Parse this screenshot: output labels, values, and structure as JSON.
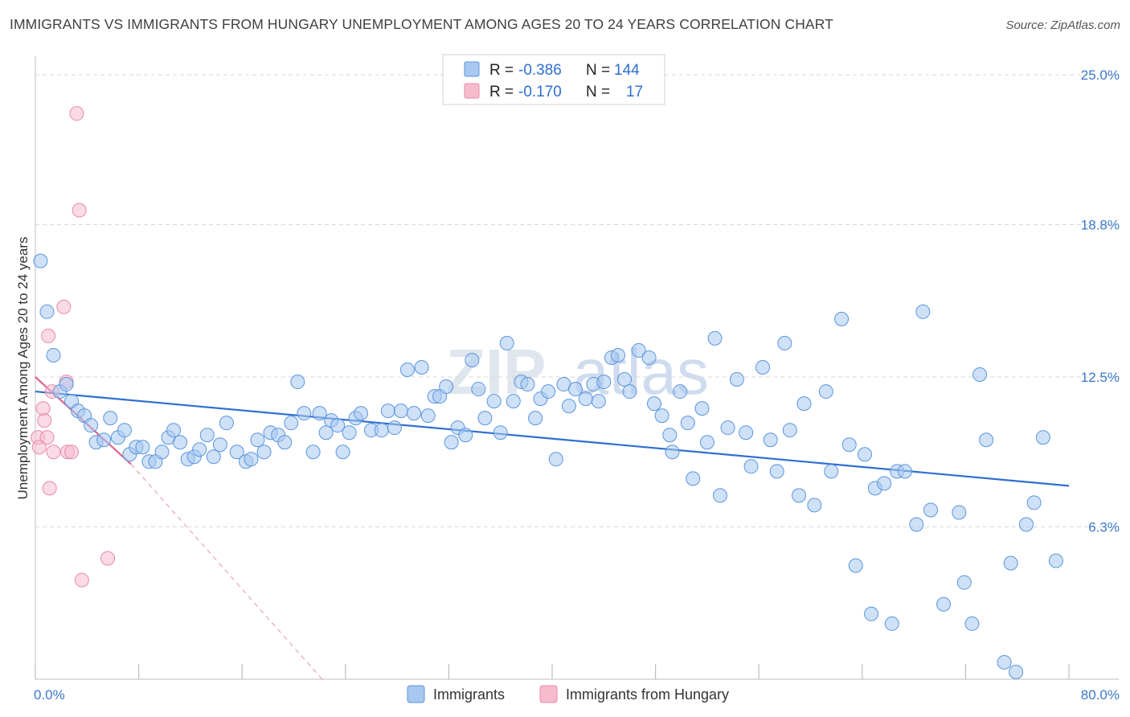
{
  "title": "IMMIGRANTS VS IMMIGRANTS FROM HUNGARY UNEMPLOYMENT AMONG AGES 20 TO 24 YEARS CORRELATION CHART",
  "source": "Source: ZipAtlas.com",
  "watermark": {
    "left": "ZIP",
    "right": "atlas"
  },
  "legend": {
    "row1": {
      "r_label": "R =",
      "r_value": "-0.386",
      "n_label": "N =",
      "n_value": "144"
    },
    "row2": {
      "r_label": "R =",
      "r_value": "-0.170",
      "n_label": "N =",
      "n_value": "17"
    }
  },
  "bottom_legend": {
    "series1": "Immigrants",
    "series2": "Immigrants from Hungary"
  },
  "chart_data": {
    "type": "scatter",
    "title": "IMMIGRANTS VS IMMIGRANTS FROM HUNGARY UNEMPLOYMENT AMONG AGES 20 TO 24 YEARS CORRELATION CHART",
    "xlabel": "",
    "ylabel": "Unemployment Among Ages 20 to 24 years",
    "xlim": [
      0,
      80
    ],
    "ylim": [
      0,
      25.5
    ],
    "x_tick_labels": [
      "0.0%",
      "80.0%"
    ],
    "y_ticks": [
      6.3,
      12.5,
      18.8,
      25.0
    ],
    "y_tick_labels": [
      "6.3%",
      "12.5%",
      "18.8%",
      "25.0%"
    ],
    "grid": true,
    "legend_position": "top-center",
    "colors": {
      "immigrants": "#a8c8f0",
      "immigrants_edge": "#5b95dc",
      "hungary": "#f6bccd",
      "hungary_edge": "#e88aa6",
      "trend1": "#2f6fd0",
      "trend2": "#e0628a"
    },
    "series": [
      {
        "name": "Immigrants",
        "r": -0.386,
        "n": 144,
        "trend": {
          "x": [
            0,
            80
          ],
          "y": [
            11.9,
            8.0
          ]
        },
        "points": [
          [
            0.4,
            17.3
          ],
          [
            0.9,
            15.2
          ],
          [
            1.4,
            13.4
          ],
          [
            1.9,
            11.9
          ],
          [
            2.4,
            12.2
          ],
          [
            2.8,
            11.5
          ],
          [
            3.3,
            11.1
          ],
          [
            3.8,
            10.9
          ],
          [
            4.3,
            10.5
          ],
          [
            4.7,
            9.8
          ],
          [
            5.3,
            9.9
          ],
          [
            5.8,
            10.8
          ],
          [
            6.4,
            10.0
          ],
          [
            6.9,
            10.3
          ],
          [
            7.3,
            9.3
          ],
          [
            7.8,
            9.6
          ],
          [
            8.3,
            9.6
          ],
          [
            8.8,
            9.0
          ],
          [
            9.3,
            9.0
          ],
          [
            9.8,
            9.4
          ],
          [
            10.3,
            10.0
          ],
          [
            10.7,
            10.3
          ],
          [
            11.2,
            9.8
          ],
          [
            11.8,
            9.1
          ],
          [
            12.3,
            9.2
          ],
          [
            12.7,
            9.5
          ],
          [
            13.3,
            10.1
          ],
          [
            13.8,
            9.2
          ],
          [
            14.3,
            9.7
          ],
          [
            14.8,
            10.6
          ],
          [
            15.6,
            9.4
          ],
          [
            16.3,
            9.0
          ],
          [
            16.7,
            9.1
          ],
          [
            17.2,
            9.9
          ],
          [
            17.7,
            9.4
          ],
          [
            18.2,
            10.2
          ],
          [
            18.8,
            10.1
          ],
          [
            19.3,
            9.8
          ],
          [
            19.8,
            10.6
          ],
          [
            20.3,
            12.3
          ],
          [
            20.8,
            11.0
          ],
          [
            21.5,
            9.4
          ],
          [
            22.0,
            11.0
          ],
          [
            22.5,
            10.2
          ],
          [
            22.9,
            10.7
          ],
          [
            23.4,
            10.5
          ],
          [
            23.8,
            9.4
          ],
          [
            24.3,
            10.2
          ],
          [
            24.8,
            10.8
          ],
          [
            25.2,
            11.0
          ],
          [
            26.0,
            10.3
          ],
          [
            26.8,
            10.3
          ],
          [
            27.3,
            11.1
          ],
          [
            27.8,
            10.4
          ],
          [
            28.3,
            11.1
          ],
          [
            28.8,
            12.8
          ],
          [
            29.3,
            11.0
          ],
          [
            29.9,
            12.9
          ],
          [
            30.4,
            10.9
          ],
          [
            30.9,
            11.7
          ],
          [
            31.3,
            11.7
          ],
          [
            31.8,
            12.1
          ],
          [
            32.2,
            9.8
          ],
          [
            32.7,
            10.4
          ],
          [
            33.3,
            10.1
          ],
          [
            33.8,
            13.2
          ],
          [
            34.3,
            12.0
          ],
          [
            34.8,
            10.8
          ],
          [
            35.5,
            11.5
          ],
          [
            36.0,
            10.2
          ],
          [
            36.5,
            13.9
          ],
          [
            37.0,
            11.5
          ],
          [
            37.6,
            12.3
          ],
          [
            38.1,
            12.2
          ],
          [
            38.7,
            10.8
          ],
          [
            39.1,
            11.6
          ],
          [
            39.7,
            11.9
          ],
          [
            40.3,
            9.1
          ],
          [
            40.9,
            12.2
          ],
          [
            41.3,
            11.3
          ],
          [
            41.8,
            12.0
          ],
          [
            42.6,
            11.6
          ],
          [
            43.2,
            12.2
          ],
          [
            43.6,
            11.5
          ],
          [
            44.0,
            12.3
          ],
          [
            44.6,
            13.3
          ],
          [
            45.1,
            13.4
          ],
          [
            45.6,
            12.4
          ],
          [
            46.0,
            11.9
          ],
          [
            46.7,
            13.6
          ],
          [
            47.5,
            13.3
          ],
          [
            47.9,
            11.4
          ],
          [
            48.5,
            10.9
          ],
          [
            49.1,
            10.1
          ],
          [
            49.3,
            9.4
          ],
          [
            49.9,
            11.9
          ],
          [
            50.5,
            10.6
          ],
          [
            50.9,
            8.3
          ],
          [
            51.6,
            11.2
          ],
          [
            52.0,
            9.8
          ],
          [
            52.6,
            14.1
          ],
          [
            53.0,
            7.6
          ],
          [
            53.6,
            10.4
          ],
          [
            54.3,
            12.4
          ],
          [
            55.0,
            10.2
          ],
          [
            55.4,
            8.8
          ],
          [
            56.3,
            12.9
          ],
          [
            56.9,
            9.9
          ],
          [
            57.4,
            8.6
          ],
          [
            58.0,
            13.9
          ],
          [
            58.4,
            10.3
          ],
          [
            59.1,
            7.6
          ],
          [
            59.5,
            11.4
          ],
          [
            60.3,
            7.2
          ],
          [
            61.2,
            11.9
          ],
          [
            61.6,
            8.6
          ],
          [
            62.4,
            14.9
          ],
          [
            63.0,
            9.7
          ],
          [
            63.5,
            4.7
          ],
          [
            64.2,
            9.3
          ],
          [
            64.7,
            2.7
          ],
          [
            65.0,
            7.9
          ],
          [
            65.7,
            8.1
          ],
          [
            66.3,
            2.3
          ],
          [
            66.7,
            8.6
          ],
          [
            67.3,
            8.6
          ],
          [
            68.2,
            6.4
          ],
          [
            68.7,
            15.2
          ],
          [
            69.3,
            7.0
          ],
          [
            70.3,
            3.1
          ],
          [
            71.5,
            6.9
          ],
          [
            71.9,
            4.0
          ],
          [
            72.5,
            2.3
          ],
          [
            73.1,
            12.6
          ],
          [
            73.6,
            9.9
          ],
          [
            75.0,
            0.7
          ],
          [
            75.5,
            4.8
          ],
          [
            75.9,
            0.3
          ],
          [
            76.7,
            6.4
          ],
          [
            77.3,
            7.3
          ],
          [
            78.0,
            10.0
          ],
          [
            79.0,
            4.9
          ]
        ]
      },
      {
        "name": "Immigrants from Hungary",
        "r": -0.17,
        "n": 17,
        "trend": {
          "x": [
            0,
            7.4
          ],
          "y": [
            12.5,
            8.9
          ]
        },
        "trend_dashed": {
          "x": [
            7.4,
            22.2
          ],
          "y": [
            8.9,
            0.0
          ]
        },
        "points": [
          [
            0.2,
            10.0
          ],
          [
            0.3,
            9.6
          ],
          [
            0.6,
            11.2
          ],
          [
            0.7,
            10.7
          ],
          [
            0.9,
            10.0
          ],
          [
            1.0,
            14.2
          ],
          [
            1.1,
            7.9
          ],
          [
            1.3,
            11.9
          ],
          [
            1.4,
            9.4
          ],
          [
            2.2,
            15.4
          ],
          [
            2.4,
            12.3
          ],
          [
            2.5,
            9.4
          ],
          [
            2.8,
            9.4
          ],
          [
            3.2,
            23.4
          ],
          [
            3.4,
            19.4
          ],
          [
            3.6,
            4.1
          ],
          [
            5.6,
            5.0
          ]
        ]
      }
    ]
  }
}
